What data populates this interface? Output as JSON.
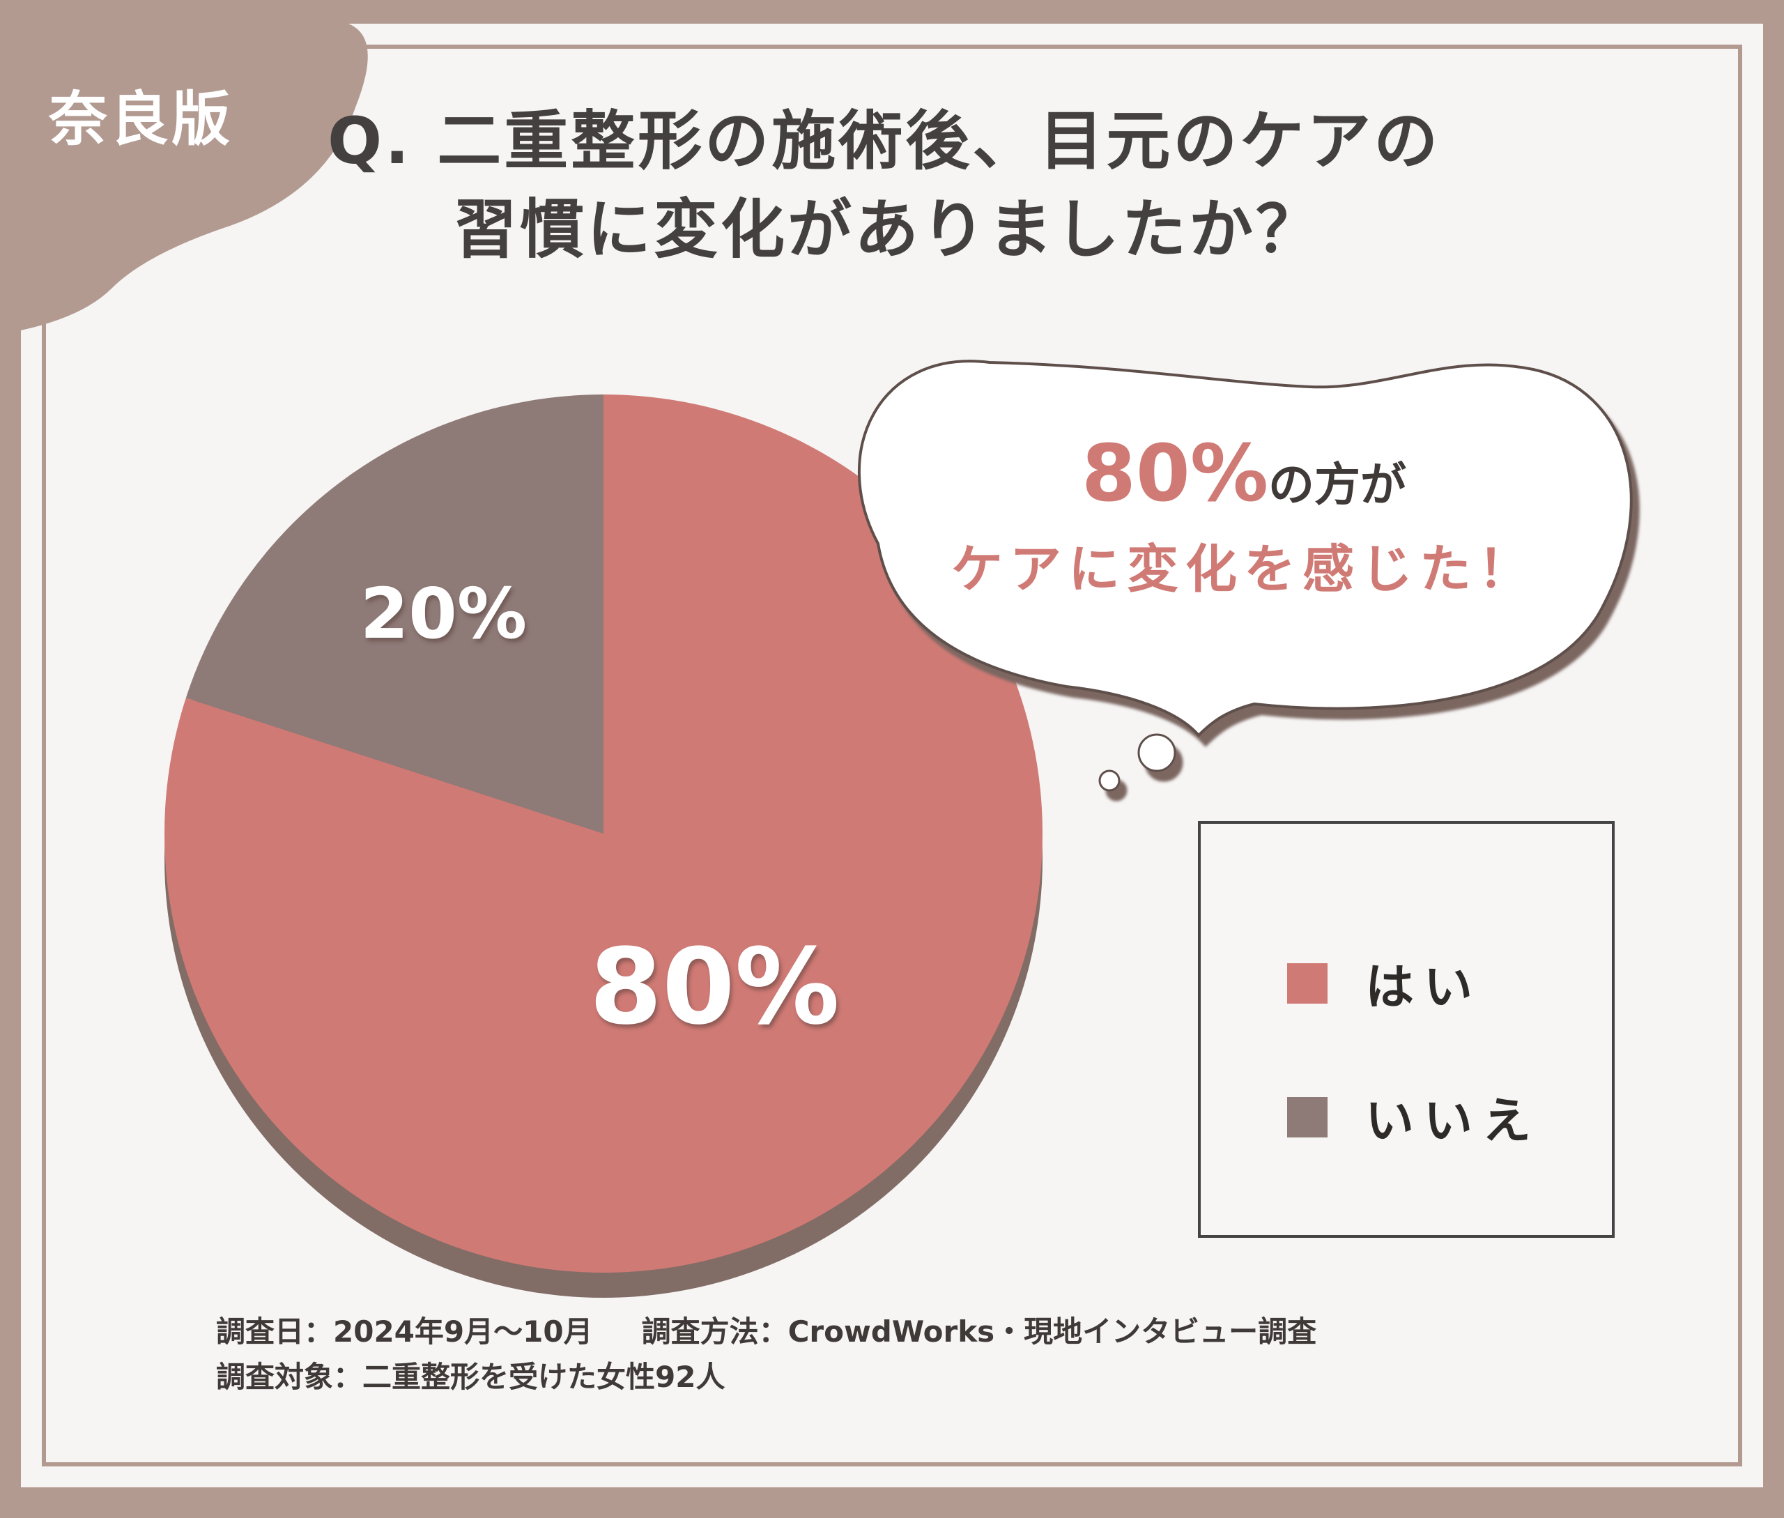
{
  "badge": {
    "region": "奈良版"
  },
  "title": {
    "line1": "Q. 二重整形の施術後、目元のケアの",
    "line2": "習慣に変化がありましたか？"
  },
  "callout": {
    "percent": "80%",
    "line1_rest": "の方が",
    "line2": "ケアに変化を感じた！"
  },
  "chart_data": {
    "type": "pie",
    "categories": [
      "はい",
      "いいえ"
    ],
    "values": [
      80,
      20
    ],
    "unit": "%",
    "data_labels": [
      "80%",
      "20%"
    ],
    "colors": [
      "#d07a75",
      "#8e7a77"
    ],
    "start_angle_deg": 0,
    "direction": "clockwise",
    "legend": {
      "position": "right",
      "entries": [
        "はい",
        "いいえ"
      ]
    }
  },
  "legend": {
    "items": [
      {
        "label": "はい",
        "color": "#d07a75"
      },
      {
        "label": "いいえ",
        "color": "#8e7a77"
      }
    ]
  },
  "footer": {
    "date": "調査日：2024年9月〜10月",
    "method": "調査方法：CrowdWorks・現地インタビュー調査",
    "target": "調査対象：二重整形を受けた女性92人"
  },
  "colors": {
    "frame": "#b29a91",
    "background": "#f6f5f4",
    "title_text": "#444040",
    "accent_text": "#d07a75",
    "pie_shadow": "#816c66"
  }
}
